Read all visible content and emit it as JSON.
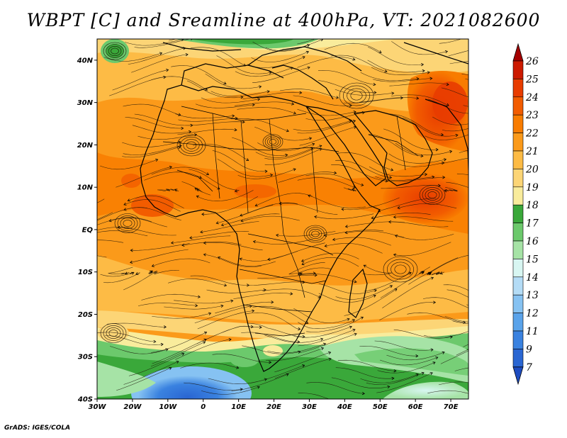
{
  "title": "WBPT [C] and Sreamline at 400hPa, VT: 2021082600",
  "footer": "GrADS: IGES/COLA",
  "map": {
    "lon_range": [
      -30,
      75
    ],
    "lat_range": [
      -40,
      45
    ],
    "lat_labels": [
      {
        "lat": 40,
        "text": "40N"
      },
      {
        "lat": 30,
        "text": "30N"
      },
      {
        "lat": 20,
        "text": "20N"
      },
      {
        "lat": 10,
        "text": "10N"
      },
      {
        "lat": 0,
        "text": "EQ"
      },
      {
        "lat": -10,
        "text": "10S"
      },
      {
        "lat": -20,
        "text": "20S"
      },
      {
        "lat": -30,
        "text": "30S"
      },
      {
        "lat": -40,
        "text": "40S"
      }
    ],
    "lon_labels": [
      {
        "lon": -30,
        "text": "30W"
      },
      {
        "lon": -20,
        "text": "20W"
      },
      {
        "lon": -10,
        "text": "10W"
      },
      {
        "lon": 0,
        "text": "0"
      },
      {
        "lon": 10,
        "text": "10E"
      },
      {
        "lon": 20,
        "text": "20E"
      },
      {
        "lon": 30,
        "text": "30E"
      },
      {
        "lon": 40,
        "text": "40E"
      },
      {
        "lon": 50,
        "text": "50E"
      },
      {
        "lon": 60,
        "text": "60E"
      },
      {
        "lon": 70,
        "text": "70E"
      }
    ]
  },
  "colorbar": {
    "levels": [
      "26",
      "25",
      "24",
      "23",
      "22",
      "21",
      "20",
      "19",
      "18",
      "17",
      "16",
      "15",
      "14",
      "13",
      "12",
      "11",
      "9",
      "7"
    ],
    "colors": [
      "#a50000",
      "#cc1a00",
      "#e83c00",
      "#f25c00",
      "#f87c00",
      "#fb9a1a",
      "#fdbb45",
      "#fcd576",
      "#f9ec9c",
      "#3aa83a",
      "#6cc96c",
      "#a6e3a6",
      "#d8f6f2",
      "#b4dcf6",
      "#86c2f2",
      "#5aa3ea",
      "#3a82e0",
      "#2a66d2",
      "#1e4cc0"
    ]
  }
}
